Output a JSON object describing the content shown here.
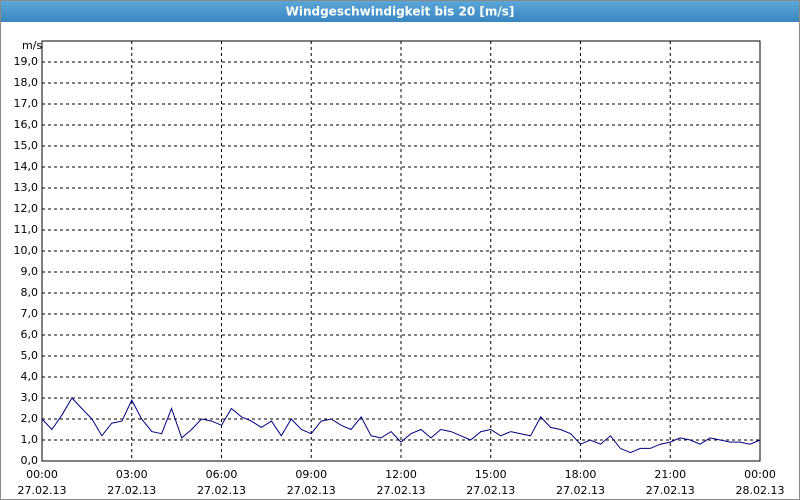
{
  "chart_data": {
    "type": "line",
    "title": "Windgeschwindigkeit bis 20 [m/s]",
    "y_label": "m/s",
    "x": [
      0,
      0.33,
      0.67,
      1,
      1.33,
      1.67,
      2,
      2.33,
      2.67,
      3,
      3.33,
      3.67,
      4,
      4.33,
      4.67,
      5,
      5.33,
      5.67,
      6,
      6.33,
      6.67,
      7,
      7.33,
      7.67,
      8,
      8.33,
      8.67,
      9,
      9.33,
      9.67,
      10,
      10.33,
      10.67,
      11,
      11.33,
      11.67,
      12,
      12.33,
      12.67,
      13,
      13.33,
      13.67,
      14,
      14.33,
      14.67,
      15,
      15.33,
      15.67,
      16,
      16.33,
      16.67,
      17,
      17.33,
      17.67,
      18,
      18.33,
      18.67,
      19,
      19.33,
      19.67,
      20,
      20.33,
      20.67,
      21,
      21.33,
      21.67,
      22,
      22.33,
      22.67,
      23,
      23.33,
      23.67,
      24
    ],
    "series": [
      {
        "name": "Windgeschwindigkeit",
        "color": "#000080",
        "values": [
          2.0,
          1.5,
          2.2,
          3.0,
          2.5,
          2.0,
          1.2,
          1.8,
          1.9,
          2.9,
          2.0,
          1.4,
          1.3,
          2.5,
          1.1,
          1.5,
          2.0,
          1.9,
          1.7,
          2.5,
          2.1,
          1.9,
          1.6,
          1.9,
          1.2,
          2.0,
          1.5,
          1.3,
          1.9,
          2.0,
          1.7,
          1.5,
          2.1,
          1.2,
          1.1,
          1.4,
          0.9,
          1.3,
          1.5,
          1.1,
          1.5,
          1.4,
          1.2,
          1.0,
          1.4,
          1.5,
          1.2,
          1.4,
          1.3,
          1.2,
          2.1,
          1.6,
          1.5,
          1.3,
          0.8,
          1.0,
          0.8,
          1.2,
          0.6,
          0.4,
          0.6,
          0.6,
          0.8,
          0.9,
          1.1,
          1.0,
          0.8,
          1.1,
          1.0,
          0.9,
          0.9,
          0.8,
          1.0
        ]
      }
    ],
    "xlim": [
      0,
      24
    ],
    "xticks": [
      {
        "value": 0,
        "label": "00:00",
        "sublabel": "27.02.13"
      },
      {
        "value": 3,
        "label": "03:00",
        "sublabel": "27.02.13"
      },
      {
        "value": 6,
        "label": "06:00",
        "sublabel": "27.02.13"
      },
      {
        "value": 9,
        "label": "09:00",
        "sublabel": "27.02.13"
      },
      {
        "value": 12,
        "label": "12:00",
        "sublabel": "27.02.13"
      },
      {
        "value": 15,
        "label": "15:00",
        "sublabel": "27.02.13"
      },
      {
        "value": 18,
        "label": "18:00",
        "sublabel": "27.02.13"
      },
      {
        "value": 21,
        "label": "21:00",
        "sublabel": "27.02.13"
      },
      {
        "value": 24,
        "label": "00:00",
        "sublabel": "28.02.13"
      }
    ],
    "ylim": [
      0,
      20
    ],
    "yticks": [
      {
        "value": 0,
        "label": "0,0"
      },
      {
        "value": 1,
        "label": "1,0"
      },
      {
        "value": 2,
        "label": "2,0"
      },
      {
        "value": 3,
        "label": "3,0"
      },
      {
        "value": 4,
        "label": "4,0"
      },
      {
        "value": 5,
        "label": "5,0"
      },
      {
        "value": 6,
        "label": "6,0"
      },
      {
        "value": 7,
        "label": "7,0"
      },
      {
        "value": 8,
        "label": "8,0"
      },
      {
        "value": 9,
        "label": "9,0"
      },
      {
        "value": 10,
        "label": "10,0"
      },
      {
        "value": 11,
        "label": "11,0"
      },
      {
        "value": 12,
        "label": "12,0"
      },
      {
        "value": 13,
        "label": "13,0"
      },
      {
        "value": 14,
        "label": "14,0"
      },
      {
        "value": 15,
        "label": "15,0"
      },
      {
        "value": 16,
        "label": "16,0"
      },
      {
        "value": 17,
        "label": "17,0"
      },
      {
        "value": 18,
        "label": "18,0"
      },
      {
        "value": 19,
        "label": "19,0"
      }
    ],
    "grid": true
  }
}
